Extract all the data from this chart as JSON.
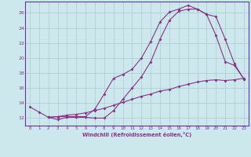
{
  "xlabel": "Windchill (Refroidissement éolien,°C)",
  "background_color": "#cce8ec",
  "grid_color": "#aacccc",
  "line_color": "#883388",
  "spine_color": "#6633aa",
  "x_min": -0.5,
  "x_max": 23.5,
  "y_min": 11.0,
  "y_max": 27.5,
  "yticks": [
    12,
    14,
    16,
    18,
    20,
    22,
    24,
    26
  ],
  "xticks": [
    0,
    1,
    2,
    3,
    4,
    5,
    6,
    7,
    8,
    9,
    10,
    11,
    12,
    13,
    14,
    15,
    16,
    17,
    18,
    19,
    20,
    21,
    22,
    23
  ],
  "line1_x": [
    0,
    1,
    2,
    3,
    4,
    5,
    6,
    7,
    8,
    9,
    10,
    11,
    12,
    13,
    14,
    15,
    16,
    17,
    18,
    19,
    20,
    21,
    22,
    23
  ],
  "line1_y": [
    13.5,
    12.8,
    12.1,
    11.8,
    12.1,
    12.1,
    12.1,
    12.0,
    12.0,
    13.0,
    14.5,
    16.0,
    17.5,
    19.5,
    22.5,
    25.0,
    26.2,
    26.5,
    26.5,
    25.8,
    23.0,
    19.5,
    19.0,
    17.2
  ],
  "line2_x": [
    2,
    3,
    4,
    5,
    6,
    7,
    8,
    9,
    10,
    11,
    12,
    13,
    14,
    15,
    16,
    17,
    18,
    19,
    20,
    21,
    22,
    23
  ],
  "line2_y": [
    12.1,
    12.2,
    12.2,
    12.2,
    12.2,
    13.2,
    15.2,
    17.3,
    17.8,
    18.5,
    20.0,
    22.2,
    24.8,
    26.1,
    26.5,
    27.0,
    26.5,
    25.8,
    25.5,
    22.5,
    19.2,
    17.2
  ],
  "line3_x": [
    2,
    3,
    4,
    5,
    6,
    7,
    8,
    9,
    10,
    11,
    12,
    13,
    14,
    15,
    16,
    17,
    18,
    19,
    20,
    21,
    22,
    23
  ],
  "line3_y": [
    12.1,
    12.2,
    12.4,
    12.5,
    12.7,
    13.0,
    13.3,
    13.7,
    14.1,
    14.5,
    14.9,
    15.2,
    15.6,
    15.8,
    16.2,
    16.5,
    16.8,
    17.0,
    17.1,
    17.0,
    17.1,
    17.3
  ]
}
